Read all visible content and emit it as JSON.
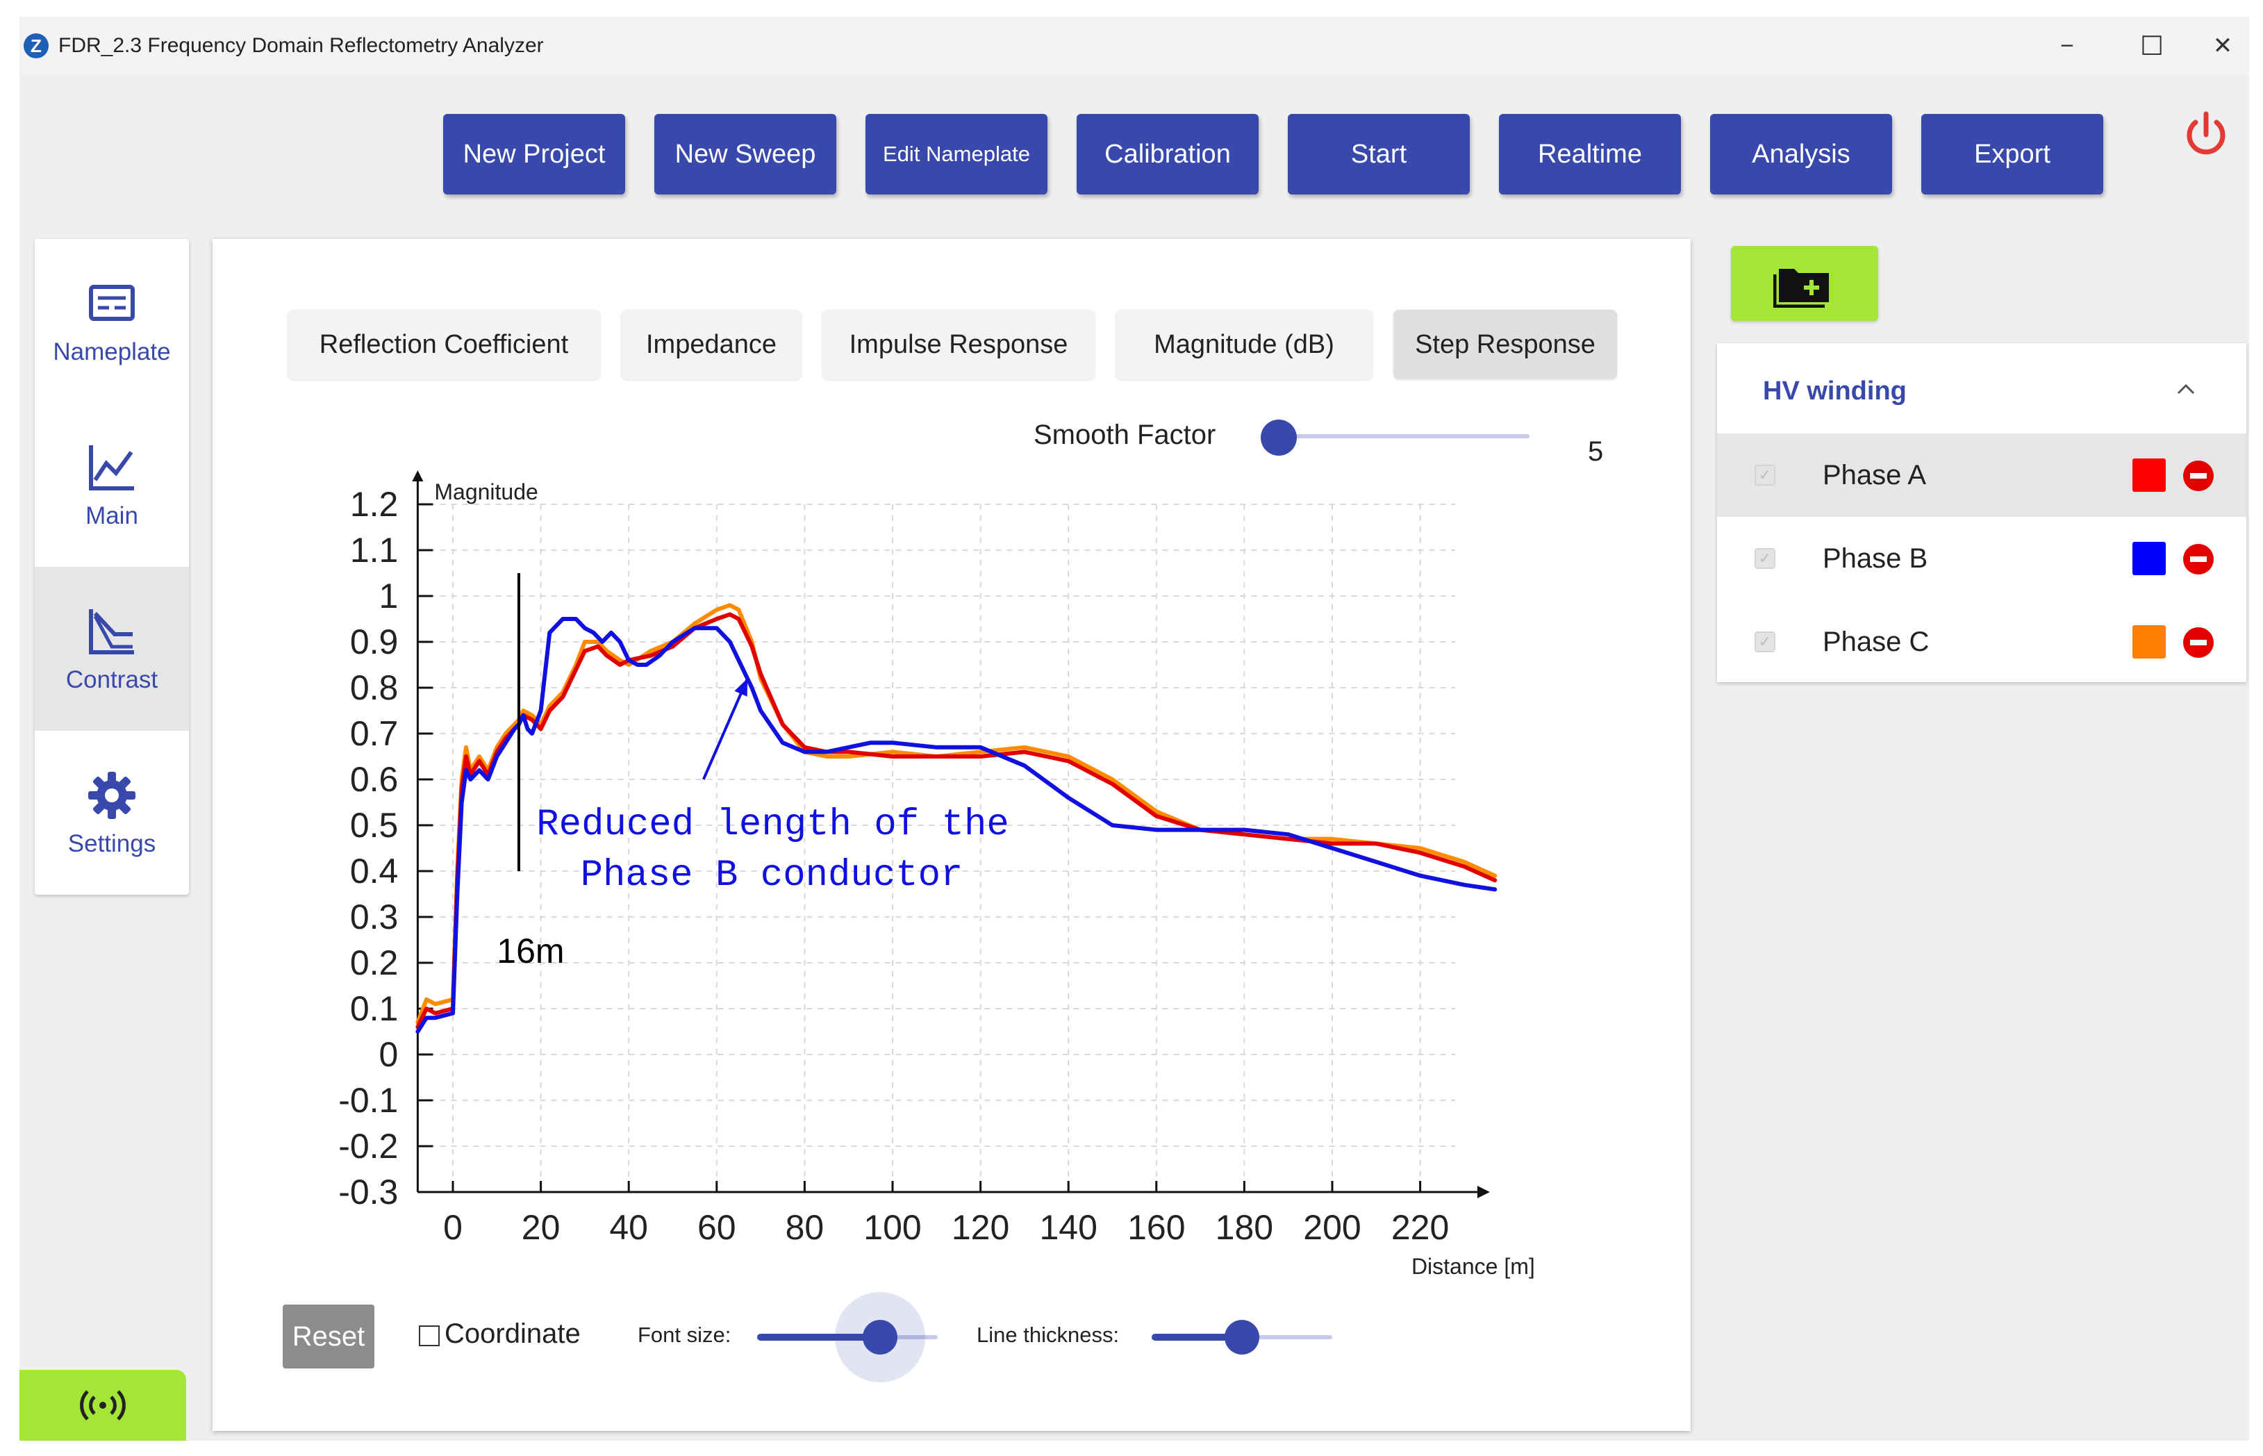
{
  "window": {
    "title": "FDR_2.3 Frequency Domain Reflectometry Analyzer",
    "logo_letter": "Z",
    "minimize": "−",
    "maximize": "☐",
    "close": "✕"
  },
  "toolbar": {
    "buttons": [
      {
        "label": "New Project"
      },
      {
        "label": "New Sweep"
      },
      {
        "label": "Edit Nameplate"
      },
      {
        "label": "Calibration"
      },
      {
        "label": "Start"
      },
      {
        "label": "Realtime"
      },
      {
        "label": "Analysis"
      },
      {
        "label": "Export"
      }
    ],
    "color": "#3949ab",
    "power_color": "#e53935"
  },
  "sidebar": {
    "items": [
      {
        "label": "Nameplate",
        "icon": "nameplate-icon"
      },
      {
        "label": "Main",
        "icon": "line-chart-icon"
      },
      {
        "label": "Contrast",
        "icon": "contrast-chart-icon",
        "active": true
      },
      {
        "label": "Settings",
        "icon": "gear-icon"
      }
    ],
    "bottom_button_icon": "wireless-signal-icon",
    "accent": "#a3e635"
  },
  "tabs": [
    {
      "label": "Reflection Coefficient"
    },
    {
      "label": "Impedance"
    },
    {
      "label": "Impulse Response"
    },
    {
      "label": "Magnitude (dB)"
    },
    {
      "label": "Step Response",
      "active": true
    }
  ],
  "smooth": {
    "label": "Smooth Factor",
    "value": "5",
    "level": 0.05
  },
  "controls": {
    "reset": "Reset",
    "coordinate": "Coordinate",
    "coordinate_checked": false,
    "font_size": "Font size:",
    "font_size_level": 0.68,
    "line_thickness": "Line thickness:",
    "line_thickness_level": 0.5
  },
  "chart_data": {
    "type": "line",
    "ylabel": "Magnitude",
    "xlabel": "Distance [m]",
    "xlim": [
      -8,
      245
    ],
    "ylim": [
      -0.3,
      1.25
    ],
    "x_ticks": [
      0,
      20,
      40,
      60,
      80,
      100,
      120,
      140,
      160,
      180,
      200,
      220
    ],
    "x_tick_labels": [
      "0",
      "20",
      "40",
      "60",
      "80",
      "100",
      "120",
      "140",
      "160",
      "180",
      "200",
      "220"
    ],
    "y_ticks": [
      1.2,
      1.1,
      1,
      0.9,
      0.8,
      0.7,
      0.6,
      0.5,
      0.4,
      0.3,
      0.2,
      0.1,
      0,
      -0.1,
      -0.2,
      -0.3
    ],
    "y_tick_labels": [
      "1.2",
      "1.1",
      "1",
      "0.9",
      "0.8",
      "0.7",
      "0.6",
      "0.5",
      "0.4",
      "0.3",
      "0.2",
      "0.1",
      "0",
      "-0.1",
      "-0.2",
      "-0.3"
    ],
    "grid": true,
    "series": [
      {
        "color": "#ff8c00",
        "x": [
          -8,
          -6,
          -4,
          0,
          1,
          2,
          3,
          4,
          6,
          8,
          10,
          12,
          14,
          15,
          16,
          18,
          20,
          22,
          25,
          28,
          30,
          33,
          35,
          38,
          40,
          45,
          50,
          55,
          60,
          63,
          65,
          68,
          70,
          75,
          80,
          85,
          90,
          100,
          110,
          120,
          130,
          135,
          140,
          150,
          160,
          170,
          180,
          190,
          200,
          210,
          220,
          230,
          237
        ],
        "y": [
          0.07,
          0.12,
          0.11,
          0.12,
          0.4,
          0.6,
          0.67,
          0.62,
          0.65,
          0.62,
          0.67,
          0.7,
          0.72,
          0.73,
          0.75,
          0.74,
          0.72,
          0.76,
          0.79,
          0.85,
          0.9,
          0.9,
          0.88,
          0.86,
          0.85,
          0.88,
          0.9,
          0.94,
          0.97,
          0.98,
          0.97,
          0.9,
          0.82,
          0.72,
          0.66,
          0.65,
          0.65,
          0.66,
          0.65,
          0.66,
          0.67,
          0.66,
          0.65,
          0.6,
          0.53,
          0.49,
          0.48,
          0.47,
          0.47,
          0.46,
          0.45,
          0.42,
          0.39
        ]
      },
      {
        "name": "Phase A",
        "color": "#e10000",
        "x": [
          -8,
          -6,
          -4,
          0,
          1,
          2,
          3,
          4,
          6,
          8,
          10,
          12,
          14,
          15,
          16,
          18,
          20,
          22,
          25,
          28,
          30,
          33,
          35,
          38,
          40,
          45,
          50,
          55,
          60,
          63,
          65,
          68,
          70,
          75,
          80,
          85,
          90,
          100,
          110,
          120,
          130,
          135,
          140,
          150,
          160,
          170,
          180,
          190,
          200,
          210,
          220,
          230,
          237
        ],
        "y": [
          0.06,
          0.1,
          0.09,
          0.1,
          0.38,
          0.58,
          0.65,
          0.61,
          0.64,
          0.61,
          0.66,
          0.69,
          0.71,
          0.72,
          0.74,
          0.73,
          0.71,
          0.75,
          0.78,
          0.84,
          0.88,
          0.89,
          0.87,
          0.85,
          0.86,
          0.87,
          0.89,
          0.93,
          0.95,
          0.96,
          0.95,
          0.89,
          0.83,
          0.72,
          0.67,
          0.66,
          0.66,
          0.65,
          0.65,
          0.65,
          0.66,
          0.65,
          0.64,
          0.59,
          0.52,
          0.49,
          0.48,
          0.47,
          0.46,
          0.46,
          0.44,
          0.41,
          0.38
        ]
      },
      {
        "name": "Phase B",
        "color": "#1010e0",
        "x": [
          -8,
          -6,
          -4,
          0,
          1,
          2,
          3,
          4,
          6,
          8,
          10,
          12,
          14,
          15,
          16,
          17,
          18,
          20,
          22,
          25,
          28,
          30,
          32,
          34,
          36,
          38,
          40,
          42,
          44,
          47,
          50,
          55,
          60,
          63,
          65,
          68,
          70,
          75,
          80,
          85,
          90,
          95,
          100,
          110,
          120,
          130,
          140,
          150,
          160,
          170,
          180,
          190,
          200,
          210,
          220,
          230,
          237
        ],
        "y": [
          0.05,
          0.08,
          0.08,
          0.09,
          0.35,
          0.55,
          0.62,
          0.6,
          0.62,
          0.6,
          0.65,
          0.68,
          0.71,
          0.72,
          0.74,
          0.71,
          0.7,
          0.75,
          0.92,
          0.95,
          0.95,
          0.93,
          0.92,
          0.9,
          0.92,
          0.9,
          0.86,
          0.85,
          0.85,
          0.87,
          0.9,
          0.93,
          0.93,
          0.9,
          0.86,
          0.8,
          0.75,
          0.68,
          0.66,
          0.66,
          0.67,
          0.68,
          0.68,
          0.67,
          0.67,
          0.63,
          0.56,
          0.5,
          0.49,
          0.49,
          0.49,
          0.48,
          0.45,
          0.42,
          0.39,
          0.37,
          0.36
        ]
      }
    ],
    "annotations": [
      {
        "text": "Reduced length of the",
        "color": "#1010e0"
      },
      {
        "text": "Phase B conductor",
        "color": "#1010e0"
      },
      {
        "text": "16m",
        "color": "#000000"
      }
    ],
    "marker_line_x": 15,
    "marker_line_y": [
      0.4,
      1.05
    ],
    "arrow_from": [
      57,
      0.6
    ],
    "arrow_to": [
      67,
      0.82
    ]
  },
  "winding": {
    "title": "HV winding",
    "phases": [
      {
        "label": "Phase A",
        "color": "#ff0000",
        "checked": true,
        "selected": true
      },
      {
        "label": "Phase B",
        "color": "#0000ff",
        "checked": true
      },
      {
        "label": "Phase C",
        "color": "#ff8000",
        "checked": true
      }
    ],
    "check_mark": "✓",
    "remove_color": "#e50000"
  }
}
